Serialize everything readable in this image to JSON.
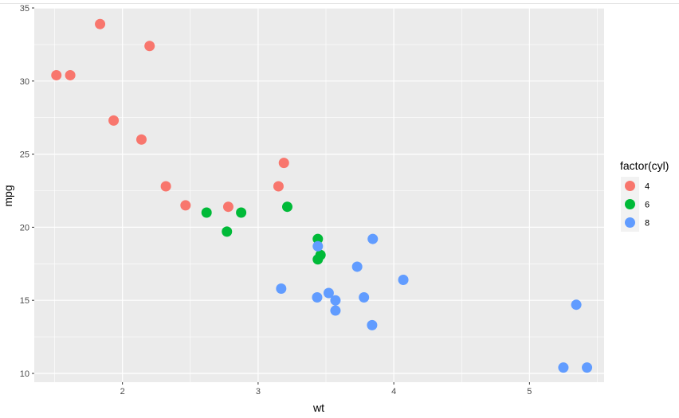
{
  "chart_data": {
    "type": "scatter",
    "xlabel": "wt",
    "ylabel": "mpg",
    "xlim": [
      1.35,
      5.55
    ],
    "ylim": [
      9.4,
      35
    ],
    "x_ticks": [
      2,
      3,
      4,
      5
    ],
    "y_ticks": [
      10,
      15,
      20,
      25,
      30,
      35
    ],
    "grid": true,
    "legend": {
      "title": "factor(cyl)",
      "placement": "right",
      "entries": [
        "4",
        "6",
        "8"
      ]
    },
    "colors": {
      "4": "#F8766D",
      "6": "#00BA38",
      "8": "#619CFF"
    },
    "panel_background": "#EBEBEB",
    "series": [
      {
        "name": "4",
        "points": [
          [
            1.513,
            30.4
          ],
          [
            1.615,
            30.4
          ],
          [
            1.835,
            33.9
          ],
          [
            1.935,
            27.3
          ],
          [
            2.14,
            26.0
          ],
          [
            2.2,
            32.4
          ],
          [
            2.32,
            22.8
          ],
          [
            2.465,
            21.5
          ],
          [
            2.78,
            21.4
          ],
          [
            3.15,
            22.8
          ],
          [
            3.19,
            24.4
          ]
        ]
      },
      {
        "name": "6",
        "points": [
          [
            2.62,
            21.0
          ],
          [
            2.77,
            19.7
          ],
          [
            2.875,
            21.0
          ],
          [
            3.215,
            21.4
          ],
          [
            3.44,
            17.8
          ],
          [
            3.44,
            19.2
          ],
          [
            3.46,
            18.1
          ]
        ]
      },
      {
        "name": "8",
        "points": [
          [
            3.17,
            15.8
          ],
          [
            3.435,
            15.2
          ],
          [
            3.44,
            18.7
          ],
          [
            3.52,
            15.5
          ],
          [
            3.57,
            14.3
          ],
          [
            3.57,
            15.0
          ],
          [
            3.73,
            17.3
          ],
          [
            3.78,
            15.2
          ],
          [
            3.84,
            13.3
          ],
          [
            3.845,
            19.2
          ],
          [
            4.07,
            16.4
          ],
          [
            5.25,
            10.4
          ],
          [
            5.345,
            14.7
          ],
          [
            5.424,
            10.4
          ]
        ]
      }
    ]
  }
}
